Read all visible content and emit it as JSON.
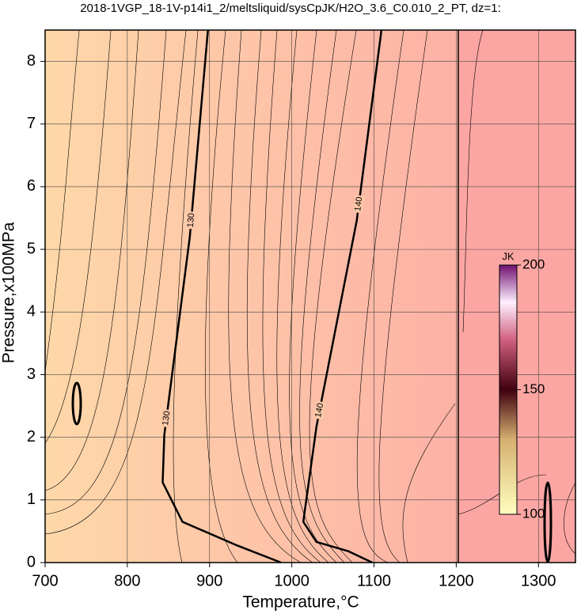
{
  "chart_data": {
    "type": "contour",
    "title": "2018-1VGP_18-1V-p14i1_2/meltsliquid/sysCpJK/H2O_3.6_C0.010_2_PT, dz=1:",
    "x_label": "Temperature,°C",
    "y_label": "Pressure,x100MPa",
    "xlim": [
      700,
      1345
    ],
    "ylim": [
      0,
      8.5
    ],
    "xticks": [
      700,
      800,
      900,
      1000,
      1100,
      1200,
      1300
    ],
    "yticks": [
      0,
      1,
      2,
      3,
      4,
      5,
      6,
      7,
      8
    ],
    "grid": true,
    "contours": [
      {
        "level": 130,
        "color": "#000000",
        "x": [
          898,
          876,
          845,
          843,
          867,
          934,
          987
        ],
        "y": [
          8.5,
          5.2,
          2.04,
          1.28,
          0.65,
          0.27,
          0
        ]
      },
      {
        "level": 140,
        "color": "#000000",
        "x": [
          1109,
          1079,
          1030,
          1016,
          1014,
          1030,
          1069,
          1098
        ],
        "y": [
          8.5,
          5.46,
          2.17,
          0.84,
          0.65,
          0.33,
          0.18,
          0
        ]
      }
    ],
    "colorbar": {
      "label": "JK",
      "clim": [
        100,
        200
      ],
      "ticks": [
        100,
        150,
        200
      ]
    }
  }
}
